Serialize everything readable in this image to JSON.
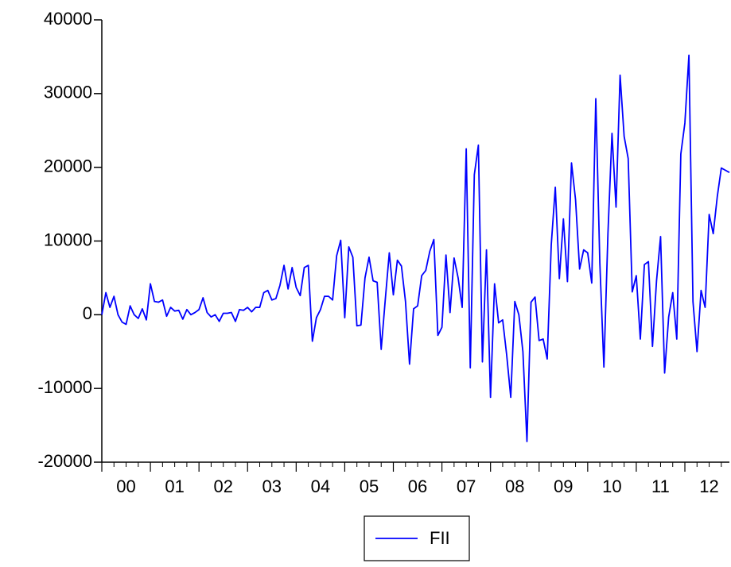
{
  "chart_data": {
    "type": "line",
    "categories": [
      "00",
      null,
      null,
      null,
      null,
      null,
      null,
      null,
      null,
      null,
      null,
      null,
      "01",
      null,
      null,
      null,
      null,
      null,
      null,
      null,
      null,
      null,
      null,
      null,
      "02",
      null,
      null,
      null,
      null,
      null,
      null,
      null,
      null,
      null,
      null,
      null,
      "03",
      null,
      null,
      null,
      null,
      null,
      null,
      null,
      null,
      null,
      null,
      null,
      "04",
      null,
      null,
      null,
      null,
      null,
      null,
      null,
      null,
      null,
      null,
      null,
      "05",
      null,
      null,
      null,
      null,
      null,
      null,
      null,
      null,
      null,
      null,
      null,
      "06",
      null,
      null,
      null,
      null,
      null,
      null,
      null,
      null,
      null,
      null,
      null,
      "07",
      null,
      null,
      null,
      null,
      null,
      null,
      null,
      null,
      null,
      null,
      null,
      "08",
      null,
      null,
      null,
      null,
      null,
      null,
      null,
      null,
      null,
      null,
      null,
      "09",
      null,
      null,
      null,
      null,
      null,
      null,
      null,
      null,
      null,
      null,
      null,
      "10",
      null,
      null,
      null,
      null,
      null,
      null,
      null,
      null,
      null,
      null,
      null,
      "11",
      null,
      null,
      null,
      null,
      null,
      null,
      null,
      null,
      null,
      null,
      null,
      "12",
      null,
      null,
      null,
      null,
      null,
      null,
      null,
      null,
      null,
      null,
      null
    ],
    "series": [
      {
        "name": "FII",
        "color": "#0000ff",
        "values": [
          0,
          3000,
          1000,
          2500,
          0,
          -1000,
          -1300,
          1200,
          0,
          -500,
          800,
          -700,
          4200,
          1800,
          1700,
          2000,
          -200,
          1000,
          500,
          600,
          -600,
          700,
          0,
          300,
          700,
          2300,
          300,
          -300,
          0,
          -900,
          200,
          200,
          300,
          -900,
          700,
          600,
          1000,
          400,
          1000,
          1000,
          3000,
          3300,
          2000,
          2200,
          4000,
          6700,
          3500,
          6400,
          3700,
          2600,
          6400,
          6700,
          -3600,
          -400,
          700,
          2500,
          2500,
          2000,
          8000,
          10100,
          -400,
          9200,
          7800,
          -1500,
          -1400,
          5000,
          7800,
          4600,
          4400,
          -4700,
          2000,
          8400,
          2700,
          7400,
          6600,
          1800,
          -6700,
          800,
          1200,
          5300,
          6000,
          8600,
          10200,
          -2800,
          -1700,
          8100,
          300,
          7700,
          5000,
          1000,
          22500,
          -7200,
          19000,
          23000,
          -6400,
          8800,
          -11200,
          4200,
          -1100,
          -700,
          -5500,
          -11200,
          1800,
          0,
          -5000,
          -17200,
          1700,
          2400,
          -3500,
          -3300,
          -6000,
          9500,
          17300,
          4900,
          13000,
          4500,
          20600,
          15600,
          6200,
          8800,
          8400,
          4300,
          29300,
          7000,
          -7100,
          11000,
          24600,
          14600,
          32500,
          24200,
          21200,
          3100,
          5300,
          -3300,
          6800,
          7200,
          -4300,
          4600,
          10600,
          -7900,
          -300,
          3000,
          -3300,
          21800,
          26000,
          35200,
          1800,
          -5000,
          3300,
          1000,
          13600,
          11000,
          16000,
          19900,
          19600,
          19300
        ]
      }
    ],
    "ylim": [
      -20000,
      40000
    ],
    "yticks": [
      -20000,
      -10000,
      0,
      10000,
      20000,
      30000,
      40000
    ],
    "legend": "bottom"
  }
}
